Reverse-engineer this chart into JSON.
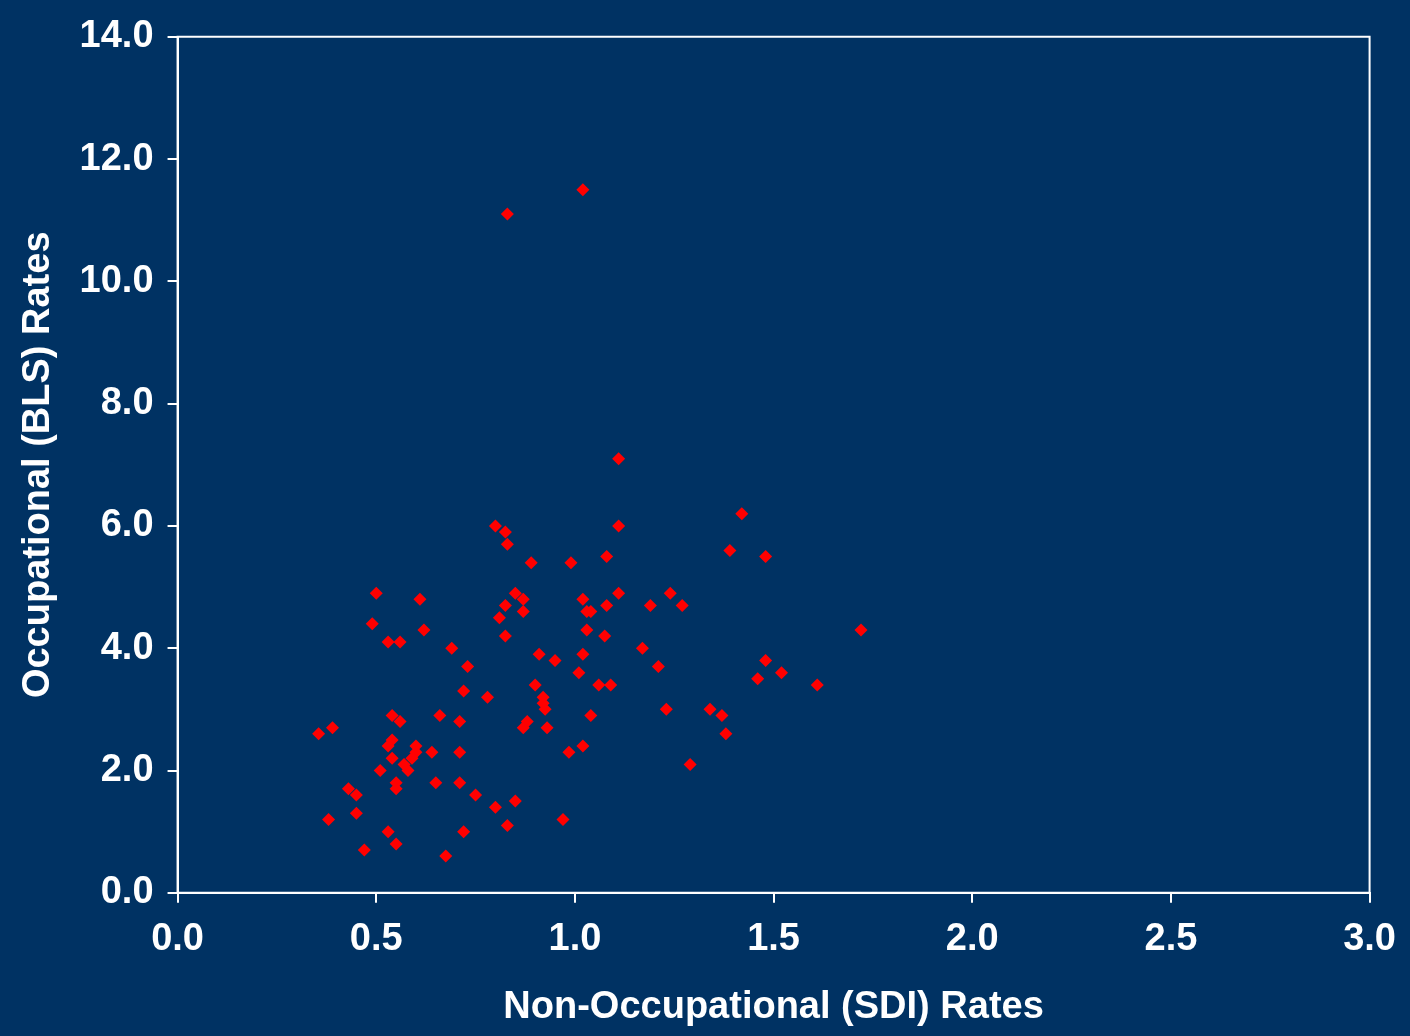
{
  "chart_data": {
    "type": "scatter",
    "xlabel": "Non-Occupational (SDI) Rates",
    "ylabel": "Occupational (BLS) Rates",
    "xlim": [
      0,
      3
    ],
    "ylim": [
      0,
      14
    ],
    "xticks": [
      {
        "value": 0,
        "label": "0.0"
      },
      {
        "value": 0.5,
        "label": "0.5"
      },
      {
        "value": 1,
        "label": "1.0"
      },
      {
        "value": 1.5,
        "label": "1.5"
      },
      {
        "value": 2,
        "label": "2.0"
      },
      {
        "value": 2.5,
        "label": "2.5"
      },
      {
        "value": 3,
        "label": "3.0"
      }
    ],
    "yticks": [
      {
        "value": 0,
        "label": "0.0"
      },
      {
        "value": 2,
        "label": "2.0"
      },
      {
        "value": 4,
        "label": "4.0"
      },
      {
        "value": 6,
        "label": "6.0"
      },
      {
        "value": 8,
        "label": "8.0"
      },
      {
        "value": 10,
        "label": "10.0"
      },
      {
        "value": 12,
        "label": "12.0"
      },
      {
        "value": 14,
        "label": "14.0"
      }
    ],
    "grid": false,
    "legend": false,
    "marker": "diamond",
    "series": [
      {
        "color": "#ff0000",
        "x": [
          0.355,
          0.39,
          0.38,
          0.43,
          0.45,
          0.45,
          0.47,
          0.5,
          0.49,
          0.51,
          0.53,
          0.56,
          0.53,
          0.55,
          0.54,
          0.56,
          0.53,
          0.54,
          0.54,
          0.55,
          0.55,
          0.57,
          0.58,
          0.59,
          0.6,
          0.6,
          0.61,
          0.62,
          0.64,
          0.65,
          0.66,
          0.675,
          0.69,
          0.71,
          0.71,
          0.71,
          0.72,
          0.72,
          0.73,
          0.75,
          0.78,
          0.8,
          0.8,
          0.81,
          0.825,
          0.825,
          0.83,
          0.825,
          0.83,
          0.83,
          0.85,
          0.85,
          0.87,
          0.87,
          0.87,
          0.88,
          0.89,
          0.9,
          0.91,
          0.92,
          0.92,
          0.925,
          0.93,
          0.95,
          0.97,
          0.985,
          0.99,
          1.01,
          1.02,
          1.02,
          1.02,
          1.02,
          1.03,
          1.04,
          1.03,
          1.04,
          1.06,
          1.075,
          1.08,
          1.08,
          1.09,
          1.11,
          1.11,
          1.11,
          1.17,
          1.19,
          1.21,
          1.23,
          1.24,
          1.27,
          1.29,
          1.34,
          1.37,
          1.38,
          1.39,
          1.42,
          1.46,
          1.48,
          1.48,
          1.52,
          1.61,
          1.72
        ],
        "values": [
          2.6,
          2.7,
          1.2,
          1.7,
          1.6,
          1.3,
          0.7,
          4.9,
          4.4,
          2.0,
          4.1,
          4.1,
          1.0,
          0.8,
          2.9,
          2.8,
          2.4,
          2.5,
          2.2,
          1.8,
          1.7,
          2.1,
          2.0,
          2.2,
          2.4,
          2.3,
          4.8,
          4.3,
          2.3,
          1.8,
          2.9,
          0.6,
          4.0,
          2.8,
          2.3,
          1.8,
          1.0,
          3.3,
          3.7,
          1.6,
          3.2,
          1.4,
          6.0,
          4.5,
          4.7,
          4.2,
          11.1,
          5.9,
          5.7,
          1.1,
          4.9,
          1.5,
          4.6,
          4.8,
          2.7,
          2.8,
          5.4,
          3.4,
          3.9,
          3.2,
          3.1,
          3.0,
          2.7,
          3.8,
          1.2,
          2.3,
          5.4,
          3.6,
          11.5,
          4.8,
          2.4,
          3.9,
          4.6,
          4.6,
          4.3,
          2.9,
          3.4,
          4.2,
          5.5,
          4.7,
          3.4,
          7.1,
          6.0,
          4.9,
          4.0,
          4.7,
          3.7,
          3.0,
          4.9,
          4.7,
          2.1,
          3.0,
          2.9,
          2.6,
          5.6,
          6.2,
          3.5,
          5.5,
          3.8,
          3.6,
          3.4,
          4.3
        ]
      }
    ]
  }
}
